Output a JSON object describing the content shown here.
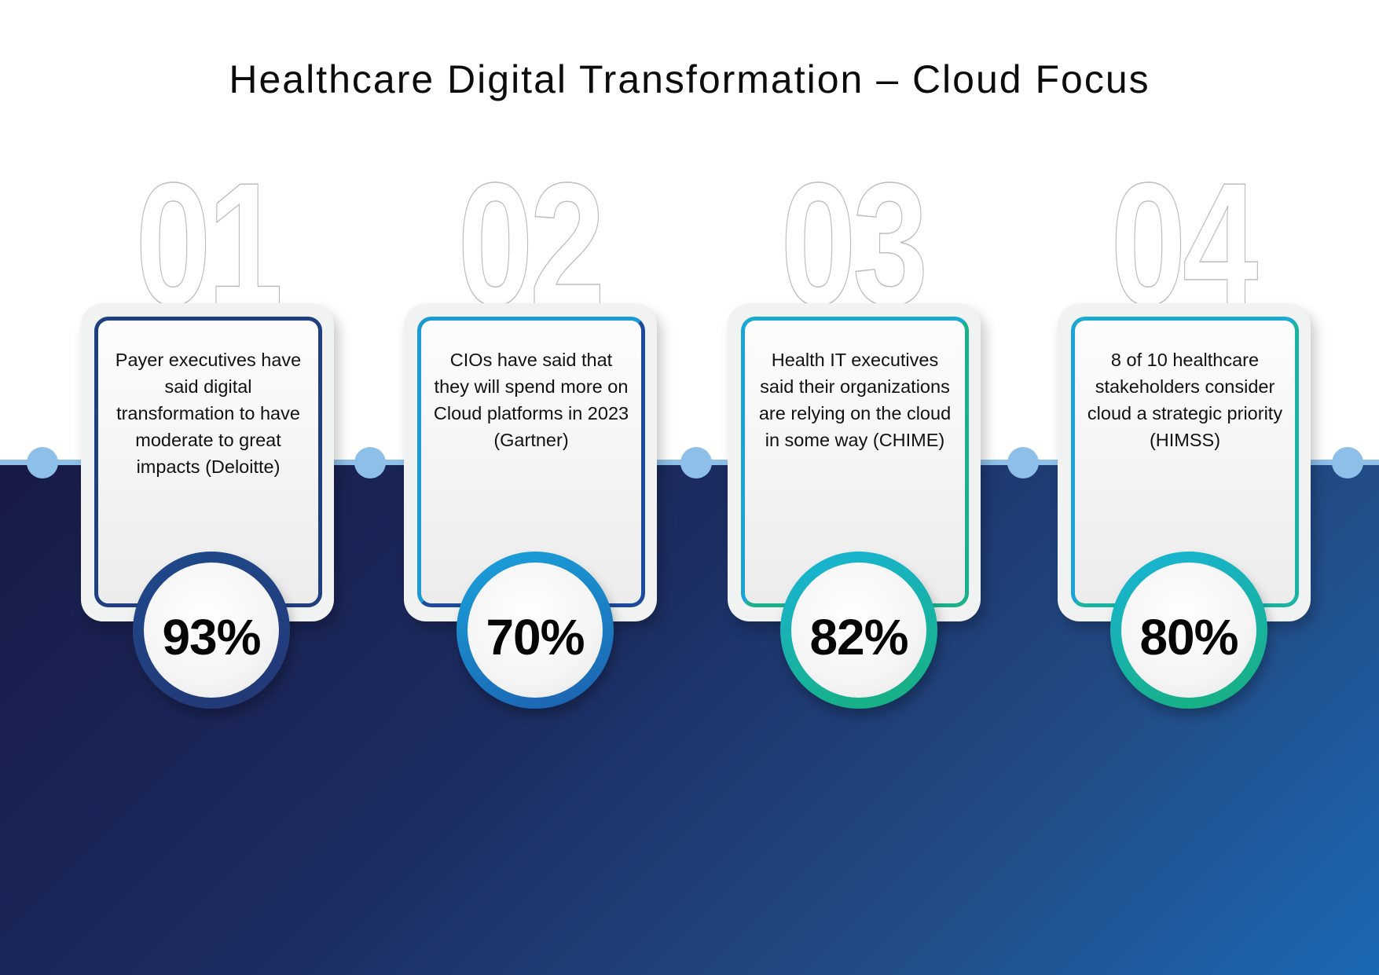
{
  "title": "Healthcare Digital Transformation – Cloud Focus",
  "colors": {
    "background_dark": "#181a47",
    "background_light": "#1a69b3",
    "timeline": "#8ebfe8"
  },
  "items": [
    {
      "number": "01",
      "text": "Payer executives have said digital transformation to have moderate to great impacts (Deloitte)",
      "percent": "93%",
      "colors": {
        "border": "#1f3f80",
        "ring_from": "#1e4a8c",
        "ring_to": "#243775"
      }
    },
    {
      "number": "02",
      "text": "CIOs have said that they will spend more on Cloud platforms in 2023 (Gartner)",
      "percent": "70%",
      "colors": {
        "border": "#1b9ad6",
        "ring_from": "#1aa3dc",
        "ring_to": "#1c5fae"
      }
    },
    {
      "number": "03",
      "text": "Health IT executives said their organizations are relying on the cloud in some way (CHIME)",
      "percent": "82%",
      "colors": {
        "border": "#19b08a",
        "ring_from": "#18b4d8",
        "ring_to": "#18b07a"
      }
    },
    {
      "number": "04",
      "text": "8 of 10 healthcare stakeholders consider cloud a strategic priority (HIMSS)",
      "percent": "80%",
      "colors": {
        "border": "#18b3a2",
        "ring_from": "#18b4d8",
        "ring_to": "#18b07a"
      }
    }
  ]
}
